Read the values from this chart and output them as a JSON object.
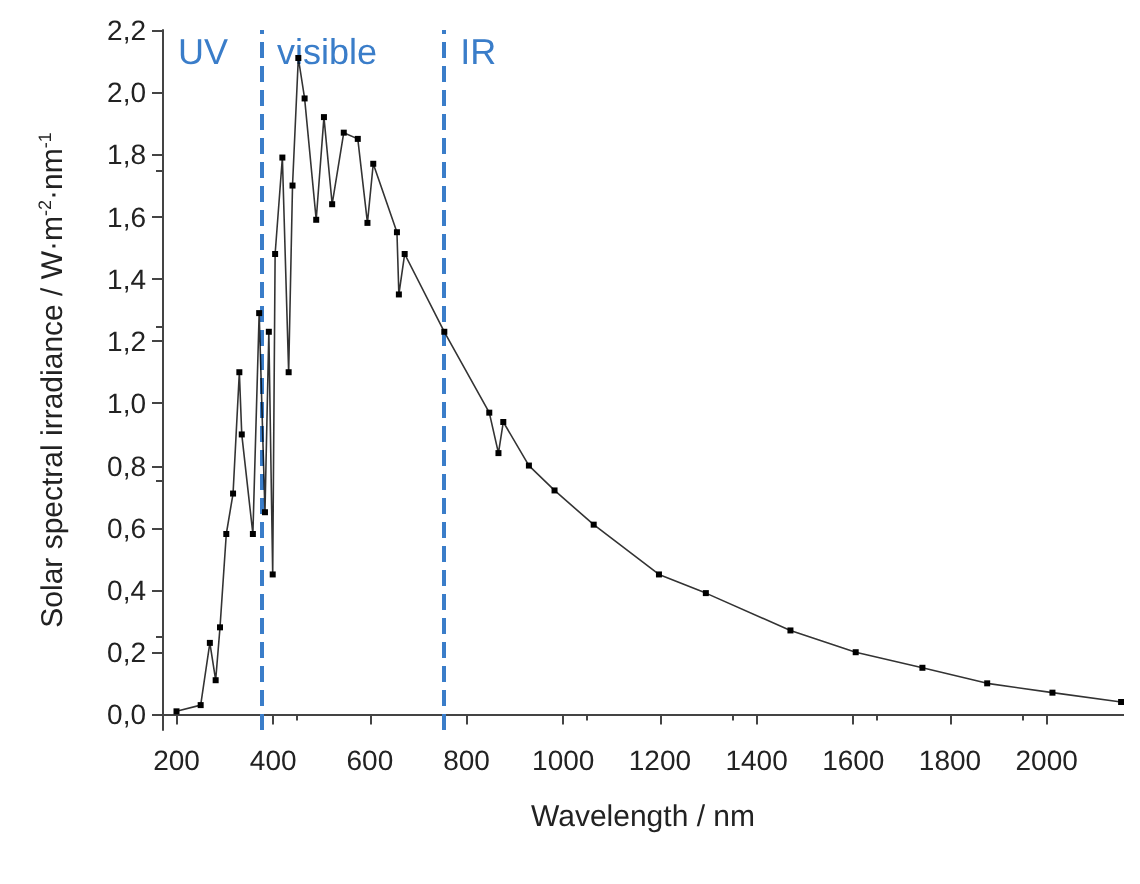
{
  "chart_data": {
    "type": "line",
    "xlabel": "Wavelength / nm",
    "ylabel": "Solar spectral irradiance / W·m$^{-2}$·nm$^{-1}$",
    "x": [
      200,
      250,
      269,
      281,
      290,
      303,
      317,
      330,
      335,
      358,
      371,
      383,
      391,
      399,
      404,
      419,
      432,
      440,
      452,
      465,
      489,
      505,
      522,
      546,
      575,
      595,
      607,
      656,
      660,
      672,
      754,
      847,
      866,
      876,
      929,
      982,
      1063,
      1198,
      1295,
      1470,
      1605,
      1743,
      1877,
      2012,
      2154
    ],
    "series": [
      {
        "color": "#000000",
        "values": [
          0.01,
          0.03,
          0.23,
          0.11,
          0.28,
          0.58,
          0.71,
          1.1,
          0.9,
          0.58,
          1.29,
          0.65,
          1.23,
          0.45,
          1.48,
          1.79,
          1.1,
          1.7,
          2.11,
          1.98,
          1.59,
          1.92,
          1.64,
          1.87,
          1.85,
          1.58,
          1.77,
          1.55,
          1.35,
          1.48,
          1.23,
          0.97,
          0.84,
          0.94,
          0.8,
          0.72,
          0.61,
          0.45,
          0.39,
          0.27,
          0.2,
          0.15,
          0.1,
          0.07,
          0.04
        ]
      }
    ],
    "xlim": [
      170,
      2160
    ],
    "xticks": [
      200,
      400,
      600,
      800,
      1000,
      1200,
      1400,
      1600,
      1800,
      2000
    ],
    "ylim": [
      -0.05,
      2.2
    ],
    "yticks": [
      {
        "value": 0,
        "label": "0,0"
      },
      {
        "value": 0.2,
        "label": "0,2"
      },
      {
        "value": 0.4,
        "label": "0,4"
      },
      {
        "value": 0.6,
        "label": "0,6"
      },
      {
        "value": 0.8,
        "label": "0,8"
      },
      {
        "value": 1,
        "label": "1,0"
      },
      {
        "value": 1.2,
        "label": "1,2"
      },
      {
        "value": 1.4,
        "label": "1,4"
      },
      {
        "value": 1.6,
        "label": "1,6"
      },
      {
        "value": 1.8,
        "label": "1,8"
      },
      {
        "value": 2,
        "label": "2,0"
      },
      {
        "value": 2.2,
        "label": "2,2"
      }
    ],
    "ref_lines": [
      {
        "axis": "x",
        "value": 375,
        "color": "#3a7dc9",
        "line_style": "dashed"
      },
      {
        "axis": "x",
        "value": 754,
        "color": "#3a7dc9",
        "line_style": "dashed"
      }
    ],
    "annotations": [
      "UV",
      "visible",
      "IR"
    ],
    "marker": "square",
    "grid": false
  }
}
